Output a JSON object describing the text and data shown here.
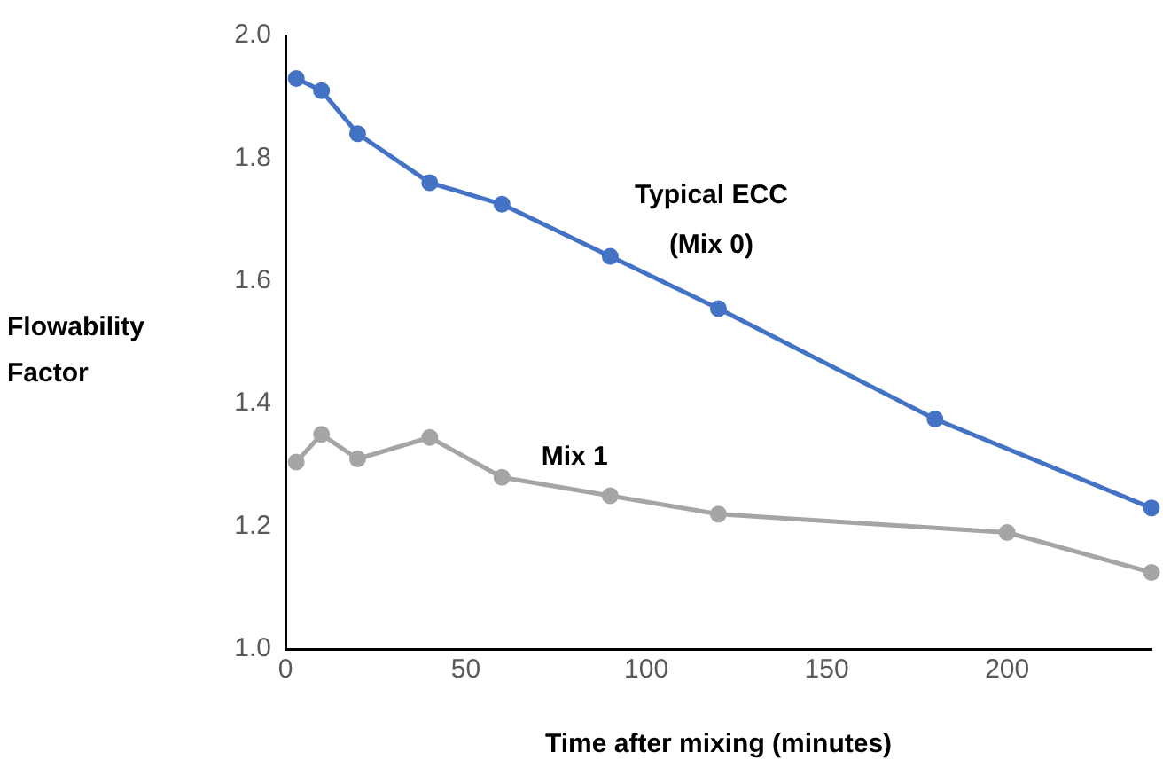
{
  "chart_data": {
    "type": "line",
    "xlabel": "Time after mixing (minutes)",
    "ylabel": "Flowability Factor",
    "xlim": [
      0,
      240
    ],
    "xticks": [
      0,
      50,
      100,
      150,
      200
    ],
    "ylim": [
      1.0,
      2.0
    ],
    "yticks": [
      {
        "value": 1.0,
        "label": "1.0"
      },
      {
        "value": 1.2,
        "label": "1.2"
      },
      {
        "value": 1.4,
        "label": "1.4"
      },
      {
        "value": 1.6,
        "label": "1.6"
      },
      {
        "value": 1.8,
        "label": "1.8"
      },
      {
        "value": 2.0,
        "label": "2.0"
      }
    ],
    "grid": false,
    "legend": false,
    "marker": "circle",
    "line_style": "solid",
    "series": [
      {
        "name": "Typical ECC (Mix 0)",
        "color": "#4472c4",
        "x": [
          3,
          10,
          20,
          40,
          60,
          90,
          120,
          180,
          240
        ],
        "values": [
          1.93,
          1.91,
          1.84,
          1.76,
          1.725,
          1.64,
          1.555,
          1.375,
          1.23
        ]
      },
      {
        "name": "Mix 1",
        "color": "#a5a5a5",
        "x": [
          3,
          10,
          20,
          40,
          60,
          90,
          120,
          200,
          240
        ],
        "values": [
          1.305,
          1.35,
          1.31,
          1.345,
          1.28,
          1.25,
          1.22,
          1.19,
          1.125
        ]
      }
    ]
  }
}
